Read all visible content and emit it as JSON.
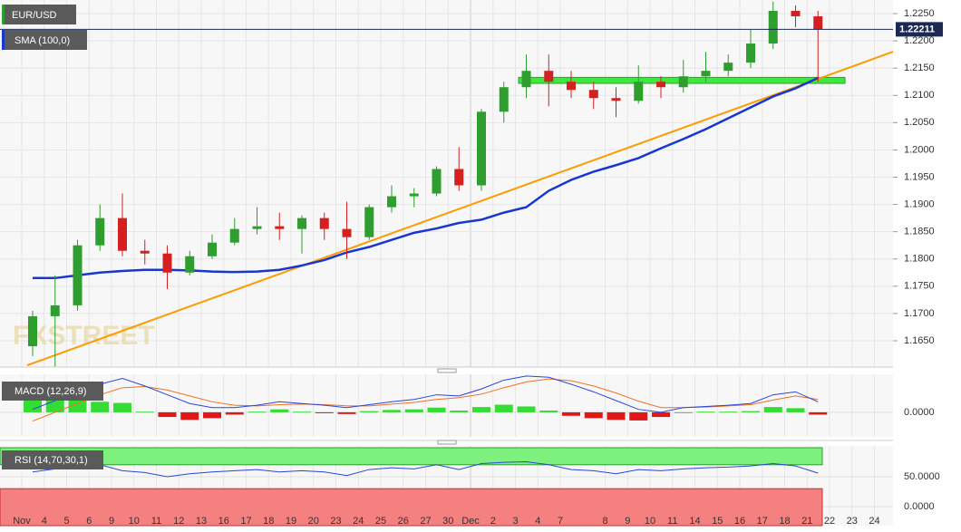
{
  "chart_data": {
    "type": "candlestick",
    "symbol": "EUR/USD",
    "watermark": "FXSTREET",
    "categories": [
      "Nov",
      "4",
      "5",
      "6",
      "9",
      "10",
      "11",
      "12",
      "13",
      "16",
      "17",
      "18",
      "19",
      "20",
      "23",
      "24",
      "25",
      "26",
      "27",
      "30",
      "Dec",
      "2",
      "3",
      "4",
      "7",
      null,
      "8",
      "9",
      "10",
      "11",
      "14",
      "15",
      "16",
      "17",
      "18",
      "21",
      "22",
      "23",
      "24"
    ],
    "open": [
      1.164,
      1.1695,
      1.1715,
      1.1825,
      1.1875,
      1.1815,
      1.181,
      1.1775,
      1.1805,
      1.183,
      1.1855,
      1.186,
      1.1855,
      1.1875,
      1.1855,
      1.184,
      1.1895,
      1.1915,
      1.192,
      1.1965,
      1.1935,
      1.207,
      1.2115,
      1.2145,
      1.2125,
      1.211,
      1.2095,
      1.209,
      1.2125,
      1.2115,
      1.2135,
      1.2145,
      1.216,
      1.2195,
      1.2255,
      1.2245,
      null,
      null,
      null
    ],
    "high": [
      1.1705,
      1.177,
      1.1835,
      1.19,
      1.192,
      1.1835,
      1.1825,
      1.1815,
      1.1845,
      1.1875,
      1.1895,
      1.1885,
      1.188,
      1.1885,
      1.1905,
      1.19,
      1.1935,
      1.193,
      1.197,
      1.2005,
      1.2075,
      1.2125,
      1.2175,
      1.2175,
      1.2145,
      1.2125,
      1.2115,
      1.2155,
      1.2135,
      1.2165,
      1.218,
      1.2175,
      1.222,
      1.2272,
      1.2265,
      1.2255,
      null,
      null,
      null
    ],
    "low": [
      1.1622,
      1.1603,
      1.1705,
      1.1815,
      1.1805,
      1.179,
      1.1745,
      1.177,
      1.18,
      1.1825,
      1.1845,
      1.1835,
      1.181,
      1.1835,
      1.18,
      1.1835,
      1.1885,
      1.1895,
      1.1915,
      1.1925,
      1.1925,
      1.205,
      1.2095,
      1.208,
      1.2095,
      1.2075,
      1.206,
      1.2085,
      1.2095,
      1.2105,
      1.2125,
      1.2135,
      1.215,
      1.2185,
      1.2225,
      1.2125,
      null,
      null,
      null
    ],
    "close": [
      1.1695,
      1.1715,
      1.1825,
      1.1875,
      1.1815,
      1.181,
      1.1775,
      1.1805,
      1.183,
      1.1855,
      1.186,
      1.1855,
      1.1875,
      1.1855,
      1.184,
      1.1895,
      1.1915,
      1.192,
      1.1965,
      1.1935,
      1.207,
      1.2115,
      1.2145,
      1.2125,
      1.211,
      1.2095,
      1.209,
      1.2125,
      1.2115,
      1.2135,
      1.2145,
      1.216,
      1.2195,
      1.2255,
      1.2245,
      1.2221,
      null,
      null,
      null
    ],
    "up_color": "#2e9e2e",
    "down_color": "#d42020",
    "sma": {
      "name": "SMA (100,0)",
      "color": "#1836d0",
      "values": [
        1.1765,
        1.1765,
        1.177,
        1.1775,
        1.1778,
        1.178,
        1.178,
        1.1779,
        1.1777,
        1.1776,
        1.1777,
        1.178,
        1.1788,
        1.1798,
        1.1812,
        1.1822,
        1.1835,
        1.1848,
        1.1856,
        1.1866,
        1.1872,
        1.1885,
        1.1895,
        1.1925,
        1.1945,
        1.196,
        1.1972,
        1.1985,
        1.2003,
        1.202,
        1.2038,
        1.2058,
        1.2078,
        1.2098,
        1.2113,
        1.2132,
        null,
        null,
        null
      ]
    },
    "trendline": {
      "color": "#ff9a00",
      "values": [
        1.1605,
        1.218
      ]
    },
    "support_zone": {
      "color": "#3ee83e",
      "values": [
        1.2122,
        1.2133
      ]
    },
    "last_price": 1.22211,
    "ylim": [
      1.16018,
      1.22749
    ],
    "yticks": [
      {
        "value": 1.165,
        "label": "1.1650"
      },
      {
        "value": 1.17,
        "label": "1.1700"
      },
      {
        "value": 1.175,
        "label": "1.1750"
      },
      {
        "value": 1.18,
        "label": "1.1800"
      },
      {
        "value": 1.185,
        "label": "1.1850"
      },
      {
        "value": 1.19,
        "label": "1.1900"
      },
      {
        "value": 1.195,
        "label": "1.1950"
      },
      {
        "value": 1.2,
        "label": "1.2000"
      },
      {
        "value": 1.205,
        "label": "1.2050"
      },
      {
        "value": 1.21,
        "label": "1.2100"
      },
      {
        "value": 1.215,
        "label": "1.2150"
      },
      {
        "value": 1.22,
        "label": "1.2200"
      },
      {
        "value": 1.225,
        "label": "1.2250"
      }
    ],
    "grid": true,
    "macd": {
      "name": "MACD (12,26,9)",
      "macd_color": "#2b45d8",
      "signal_color": "#f07020",
      "macd": [
        0.0005,
        0.002,
        0.0035,
        0.0048,
        0.0058,
        0.0045,
        0.003,
        0.0015,
        0.0008,
        0.0008,
        0.0012,
        0.0018,
        0.0015,
        0.0012,
        0.0008,
        0.0013,
        0.0018,
        0.0022,
        0.003,
        0.0028,
        0.004,
        0.0055,
        0.0062,
        0.006,
        0.0048,
        0.0035,
        0.002,
        0.0005,
        0,
        0.0008,
        0.001,
        0.0012,
        0.0015,
        0.003,
        0.0035,
        0.0018,
        null,
        null,
        null
      ],
      "signal": [
        -0.0015,
        0,
        0.0015,
        0.003,
        0.0042,
        0.0044,
        0.0038,
        0.0028,
        0.0018,
        0.0012,
        0.0011,
        0.0013,
        0.0014,
        0.0013,
        0.0011,
        0.0011,
        0.0014,
        0.0017,
        0.0022,
        0.0025,
        0.0031,
        0.0042,
        0.0052,
        0.0057,
        0.0054,
        0.0045,
        0.0033,
        0.0019,
        0.0008,
        0.0008,
        0.0009,
        0.0011,
        0.0013,
        0.0021,
        0.0028,
        0.0022,
        null,
        null,
        null
      ],
      "histogram": [
        0.002,
        0.002,
        0.002,
        0.0018,
        0.0016,
        0.0001,
        -0.0008,
        -0.0013,
        -0.001,
        -0.0004,
        0.0001,
        0.0005,
        0.0001,
        -0.0001,
        -0.0003,
        0.0002,
        0.0004,
        0.0005,
        0.0008,
        0.0003,
        0.0009,
        0.0013,
        0.001,
        0.0003,
        -0.0006,
        -0.001,
        -0.0013,
        -0.0014,
        -0.0008,
        0,
        0.0001,
        0.0001,
        0.0002,
        0.0009,
        0.0007,
        -0.0004,
        null,
        null,
        null
      ],
      "ylim": [
        -0.0042,
        0.0065
      ],
      "yticks": [
        {
          "value": 0,
          "label": "0.0000"
        }
      ]
    },
    "rsi": {
      "name": "RSI (14,70,30,1)",
      "color": "#2b45d8",
      "overbought": 70,
      "oversold": 30,
      "values": [
        58,
        63,
        68,
        70,
        60,
        57,
        50,
        55,
        58,
        60,
        62,
        58,
        60,
        58,
        52,
        62,
        65,
        63,
        70,
        62,
        72,
        74,
        75,
        70,
        62,
        60,
        55,
        62,
        60,
        63,
        65,
        66,
        68,
        72,
        68,
        56,
        null,
        null,
        null
      ],
      "ylim": [
        -31.8,
        101.5
      ],
      "yticks": [
        {
          "value": 50,
          "label": "50.0000"
        },
        {
          "value": 0,
          "label": "0.0000"
        }
      ]
    }
  }
}
